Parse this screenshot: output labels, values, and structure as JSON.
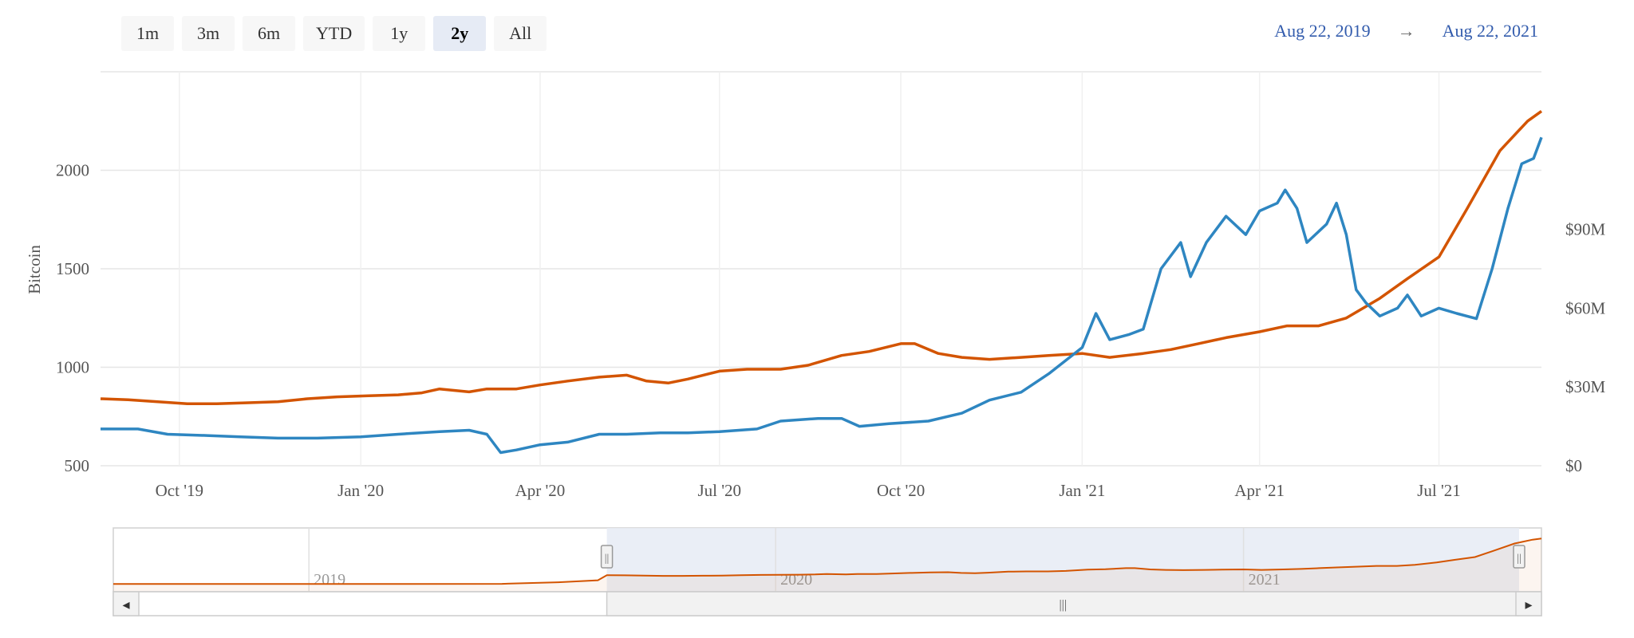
{
  "zoom": {
    "buttons": [
      {
        "label": "1m",
        "active": false
      },
      {
        "label": "3m",
        "active": false
      },
      {
        "label": "6m",
        "active": false
      },
      {
        "label": "YTD",
        "active": false
      },
      {
        "label": "1y",
        "active": false
      },
      {
        "label": "2y",
        "active": true
      },
      {
        "label": "All",
        "active": false
      }
    ]
  },
  "range": {
    "from": "Aug 22, 2019",
    "arrow": "→",
    "to": "Aug 22, 2021"
  },
  "colors": {
    "blue": "#2e86c1",
    "orange": "#d35400",
    "grid": "#e6e6e6",
    "nav_fill": "#e6ebf5"
  },
  "chart_data": {
    "type": "line",
    "ylabel": "Bitcoin",
    "left_axis": {
      "ticks": [
        500,
        1000,
        1500,
        2000
      ],
      "range": [
        500,
        2500
      ]
    },
    "right_axis": {
      "ticks": [
        "$0",
        "$30M",
        "$60M",
        "$90M"
      ],
      "values": [
        0,
        30,
        60,
        90
      ],
      "range": [
        0,
        150
      ],
      "unit": "M USD"
    },
    "x_range": [
      "2019-08-22",
      "2021-08-22"
    ],
    "x_ticks": [
      {
        "date": "2019-10-01",
        "label": "Oct '19"
      },
      {
        "date": "2020-01-01",
        "label": "Jan '20"
      },
      {
        "date": "2020-04-01",
        "label": "Apr '20"
      },
      {
        "date": "2020-07-01",
        "label": "Jul '20"
      },
      {
        "date": "2020-10-01",
        "label": "Oct '20"
      },
      {
        "date": "2021-01-01",
        "label": "Jan '21"
      },
      {
        "date": "2021-04-01",
        "label": "Apr '21"
      },
      {
        "date": "2021-07-01",
        "label": "Jul '21"
      }
    ],
    "series": [
      {
        "axis": "left",
        "points": [
          [
            "2019-08-22",
            840
          ],
          [
            "2019-09-05",
            835
          ],
          [
            "2019-09-20",
            825
          ],
          [
            "2019-10-05",
            815
          ],
          [
            "2019-10-20",
            815
          ],
          [
            "2019-11-05",
            820
          ],
          [
            "2019-11-20",
            825
          ],
          [
            "2019-12-05",
            840
          ],
          [
            "2019-12-20",
            850
          ],
          [
            "2020-01-05",
            855
          ],
          [
            "2020-01-20",
            860
          ],
          [
            "2020-02-01",
            870
          ],
          [
            "2020-02-10",
            890
          ],
          [
            "2020-02-25",
            875
          ],
          [
            "2020-03-05",
            890
          ],
          [
            "2020-03-20",
            890
          ],
          [
            "2020-04-01",
            910
          ],
          [
            "2020-04-15",
            930
          ],
          [
            "2020-05-01",
            950
          ],
          [
            "2020-05-15",
            960
          ],
          [
            "2020-05-25",
            930
          ],
          [
            "2020-06-05",
            920
          ],
          [
            "2020-06-15",
            940
          ],
          [
            "2020-07-01",
            980
          ],
          [
            "2020-07-15",
            990
          ],
          [
            "2020-08-01",
            990
          ],
          [
            "2020-08-15",
            1010
          ],
          [
            "2020-09-01",
            1060
          ],
          [
            "2020-09-15",
            1080
          ],
          [
            "2020-10-01",
            1120
          ],
          [
            "2020-10-08",
            1120
          ],
          [
            "2020-10-20",
            1070
          ],
          [
            "2020-11-01",
            1050
          ],
          [
            "2020-11-15",
            1040
          ],
          [
            "2020-12-01",
            1050
          ],
          [
            "2020-12-15",
            1060
          ],
          [
            "2021-01-01",
            1070
          ],
          [
            "2021-01-15",
            1050
          ],
          [
            "2021-02-01",
            1070
          ],
          [
            "2021-02-15",
            1090
          ],
          [
            "2021-03-01",
            1120
          ],
          [
            "2021-03-15",
            1150
          ],
          [
            "2021-04-01",
            1180
          ],
          [
            "2021-04-15",
            1210
          ],
          [
            "2021-05-01",
            1210
          ],
          [
            "2021-05-15",
            1250
          ],
          [
            "2021-06-01",
            1350
          ],
          [
            "2021-06-15",
            1450
          ],
          [
            "2021-07-01",
            1560
          ],
          [
            "2021-07-15",
            1800
          ],
          [
            "2021-08-01",
            2100
          ],
          [
            "2021-08-15",
            2250
          ],
          [
            "2021-08-22",
            2300
          ]
        ]
      },
      {
        "axis": "right",
        "points": [
          [
            "2019-08-22",
            14
          ],
          [
            "2019-09-10",
            14
          ],
          [
            "2019-09-25",
            12
          ],
          [
            "2019-10-15",
            11.5
          ],
          [
            "2019-11-01",
            11
          ],
          [
            "2019-11-20",
            10.5
          ],
          [
            "2019-12-10",
            10.5
          ],
          [
            "2020-01-01",
            11
          ],
          [
            "2020-01-20",
            12
          ],
          [
            "2020-02-10",
            13
          ],
          [
            "2020-02-25",
            13.5
          ],
          [
            "2020-03-05",
            12
          ],
          [
            "2020-03-12",
            5
          ],
          [
            "2020-03-20",
            6
          ],
          [
            "2020-04-01",
            8
          ],
          [
            "2020-04-15",
            9
          ],
          [
            "2020-05-01",
            12
          ],
          [
            "2020-05-15",
            12
          ],
          [
            "2020-06-01",
            12.5
          ],
          [
            "2020-06-15",
            12.5
          ],
          [
            "2020-07-01",
            13
          ],
          [
            "2020-07-20",
            14
          ],
          [
            "2020-08-01",
            17
          ],
          [
            "2020-08-20",
            18
          ],
          [
            "2020-09-01",
            18
          ],
          [
            "2020-09-10",
            15
          ],
          [
            "2020-09-25",
            16
          ],
          [
            "2020-10-15",
            17
          ],
          [
            "2020-11-01",
            20
          ],
          [
            "2020-11-15",
            25
          ],
          [
            "2020-12-01",
            28
          ],
          [
            "2020-12-15",
            35
          ],
          [
            "2021-01-01",
            45
          ],
          [
            "2021-01-08",
            58
          ],
          [
            "2021-01-15",
            48
          ],
          [
            "2021-01-25",
            50
          ],
          [
            "2021-02-01",
            52
          ],
          [
            "2021-02-10",
            75
          ],
          [
            "2021-02-20",
            85
          ],
          [
            "2021-02-25",
            72
          ],
          [
            "2021-03-05",
            85
          ],
          [
            "2021-03-15",
            95
          ],
          [
            "2021-03-25",
            88
          ],
          [
            "2021-04-01",
            97
          ],
          [
            "2021-04-10",
            100
          ],
          [
            "2021-04-14",
            105
          ],
          [
            "2021-04-20",
            98
          ],
          [
            "2021-04-25",
            85
          ],
          [
            "2021-05-05",
            92
          ],
          [
            "2021-05-10",
            100
          ],
          [
            "2021-05-15",
            88
          ],
          [
            "2021-05-20",
            67
          ],
          [
            "2021-05-25",
            62
          ],
          [
            "2021-06-01",
            57
          ],
          [
            "2021-06-10",
            60
          ],
          [
            "2021-06-15",
            65
          ],
          [
            "2021-06-22",
            57
          ],
          [
            "2021-07-01",
            60
          ],
          [
            "2021-07-10",
            58
          ],
          [
            "2021-07-20",
            56
          ],
          [
            "2021-07-28",
            75
          ],
          [
            "2021-08-05",
            98
          ],
          [
            "2021-08-12",
            115
          ],
          [
            "2021-08-18",
            117
          ],
          [
            "2021-08-22",
            125
          ]
        ]
      }
    ]
  },
  "navigator": {
    "labels": [
      "2019",
      "2020",
      "2021"
    ],
    "scroll_grip": "|||",
    "handle_grip": "||",
    "left_arrow": "◂",
    "right_arrow": "▸"
  }
}
